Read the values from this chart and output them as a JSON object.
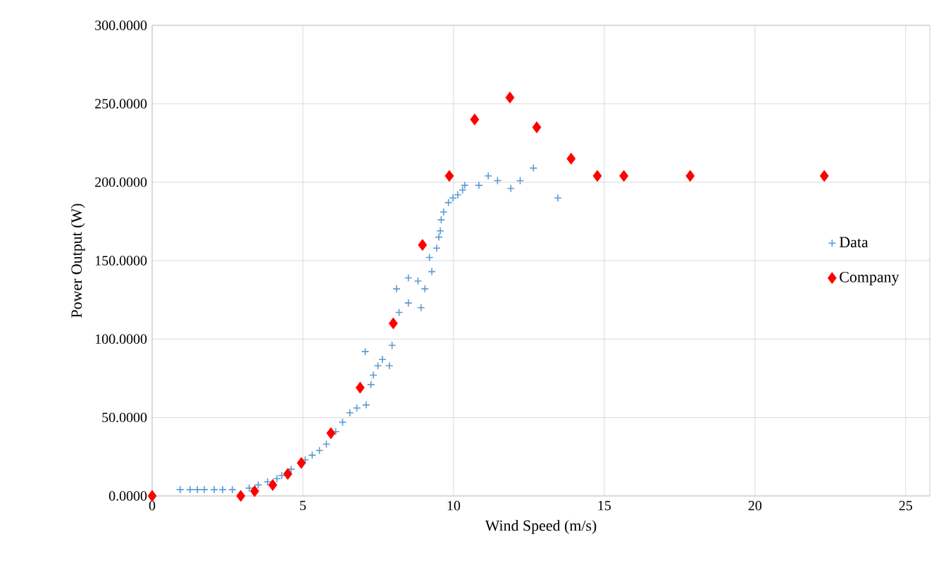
{
  "chart_data": {
    "type": "scatter",
    "xlabel": "Wind Speed (m/s)",
    "ylabel": "Power Output (W)",
    "xlim": [
      0,
      25.8
    ],
    "xticks": [
      0,
      5,
      10,
      15,
      20,
      25
    ],
    "ylim": [
      0,
      300
    ],
    "yticks": [
      {
        "value": 0,
        "label": "0.0000"
      },
      {
        "value": 50,
        "label": "50.0000"
      },
      {
        "value": 100,
        "label": "100.0000"
      },
      {
        "value": 150,
        "label": "150.0000"
      },
      {
        "value": 200,
        "label": "200.0000"
      },
      {
        "value": 250,
        "label": "250.0000"
      },
      {
        "value": 300,
        "label": "300.0000"
      }
    ],
    "grid": true,
    "legend": "right",
    "series": [
      {
        "name": "Data",
        "color": "#5b9bd5",
        "marker": "cross",
        "x": [
          0.93,
          1.26,
          1.5,
          1.73,
          2.06,
          2.34,
          2.66,
          3.22,
          3.52,
          3.83,
          4.14,
          4.3,
          4.61,
          5.08,
          5.31,
          5.55,
          5.78,
          6.09,
          6.32,
          6.56,
          6.79,
          7.1,
          7.07,
          7.26,
          7.34,
          7.49,
          7.64,
          7.87,
          7.96,
          8.19,
          8.11,
          8.5,
          8.92,
          8.5,
          8.82,
          9.05,
          9.28,
          9.2,
          9.44,
          9.51,
          9.56,
          9.59,
          9.67,
          9.83,
          9.98,
          10.14,
          10.3,
          10.37,
          10.84,
          11.15,
          11.46,
          11.9,
          12.21,
          12.65,
          13.46
        ],
        "values": [
          4,
          4,
          4,
          4,
          4,
          4,
          4,
          5,
          7,
          9,
          11,
          13,
          17,
          23,
          26,
          29,
          33,
          41,
          47,
          53,
          56,
          58,
          92,
          71,
          77,
          83,
          87,
          83,
          96,
          117,
          132,
          123,
          120,
          139,
          137,
          132,
          143,
          152,
          158,
          165,
          169,
          176,
          181,
          187,
          190,
          192,
          195,
          198,
          198,
          204,
          201,
          196,
          201,
          209,
          190
        ]
      },
      {
        "name": "Company",
        "color": "#ff0000",
        "marker": "diamond",
        "x": [
          0,
          2.94,
          3.4,
          4.0,
          4.5,
          4.95,
          5.93,
          6.9,
          8.0,
          8.97,
          9.86,
          10.7,
          11.87,
          12.76,
          13.9,
          14.77,
          15.65,
          17.85,
          22.3
        ],
        "values": [
          0,
          0,
          3,
          7,
          14,
          21,
          40,
          69,
          110,
          160,
          204,
          240,
          254,
          235,
          215,
          204,
          204,
          204,
          204
        ]
      }
    ]
  }
}
